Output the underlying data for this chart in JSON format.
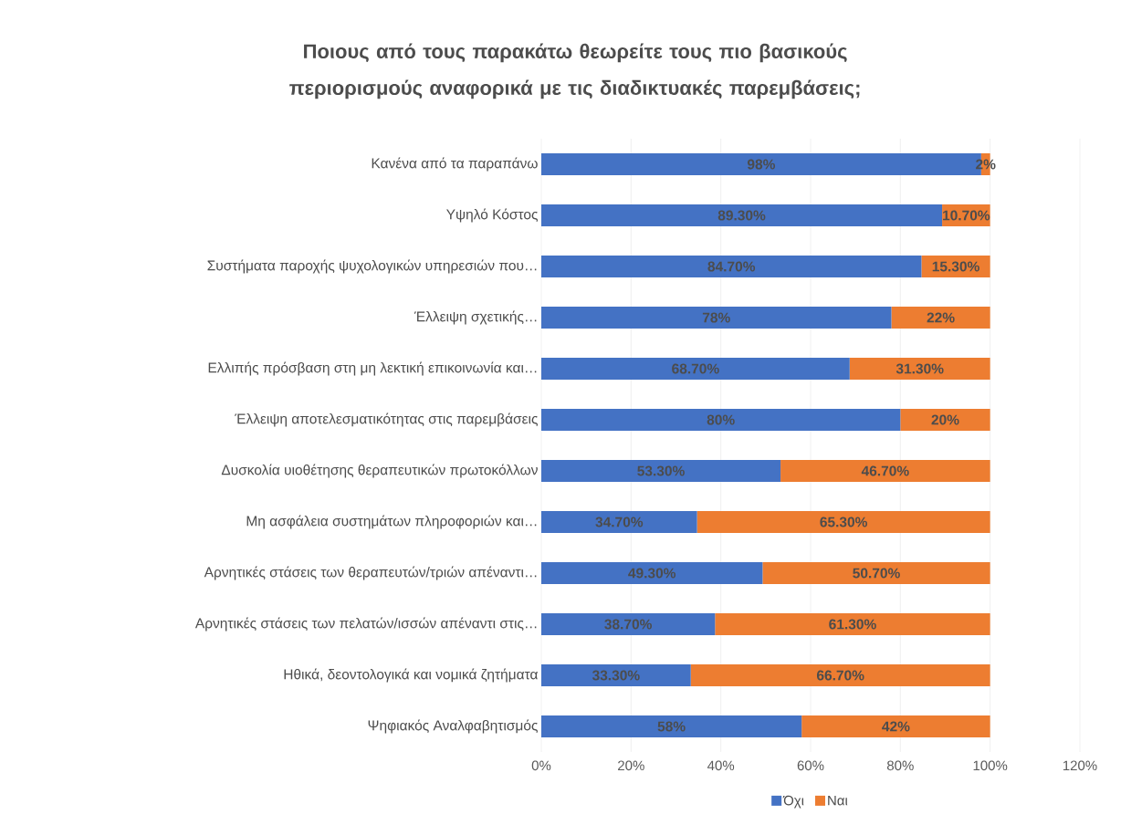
{
  "chart_data": {
    "type": "bar",
    "orientation": "horizontal",
    "stacked": true,
    "title": "Ποιους από τους παρακάτω θεωρείτε τους πιο βασικούς περιορισμούς αναφορικά με τις διαδικτυακές παρεμβάσεις;",
    "categories": [
      "Κανένα από τα παραπάνω",
      "Υψηλό Κόστος",
      "Συστήματα παροχής ψυχολογικών υπηρεσιών που…",
      "Έλλειψη σχετικής…",
      "Ελλιπής πρόσβαση στη μη λεκτική επικοινωνία και…",
      "Έλλειψη αποτελεσματικότητας στις παρεμβάσεις",
      "Δυσκολία υιοθέτησης θεραπευτικών πρωτοκόλλων",
      "Μη ασφάλεια συστημάτων πληροφοριών και…",
      "Αρνητικές στάσεις των θεραπευτών/τριών απέναντι…",
      "Αρνητικές στάσεις των πελατών/ισσών απέναντι στις…",
      "Ηθικά, δεοντολογικά και νομικά ζητήματα",
      "Ψηφιακός Αναλφαβητισμός"
    ],
    "series": [
      {
        "name": "Όχι",
        "color": "#4472c4",
        "values": [
          98,
          89.3,
          84.7,
          78,
          68.7,
          80,
          53.3,
          34.7,
          49.3,
          38.7,
          33.3,
          58
        ],
        "value_labels": [
          "98%",
          "89.30%",
          "84.70%",
          "78%",
          "68.70%",
          "80%",
          "53.30%",
          "34.70%",
          "49.30%",
          "38.70%",
          "33.30%",
          "58%"
        ]
      },
      {
        "name": "Ναι",
        "color": "#ed7d31",
        "values": [
          2,
          10.7,
          15.3,
          22,
          31.3,
          20,
          46.7,
          65.3,
          50.7,
          61.3,
          66.7,
          42
        ],
        "value_labels": [
          "2%",
          "10.70%",
          "15.30%",
          "22%",
          "31.30%",
          "20%",
          "46.70%",
          "65.30%",
          "50.70%",
          "61.30%",
          "66.70%",
          "42%"
        ]
      }
    ],
    "xlim": [
      0,
      120
    ],
    "xticks": [
      {
        "value": 0,
        "label": "0%"
      },
      {
        "value": 20,
        "label": "20%"
      },
      {
        "value": 40,
        "label": "40%"
      },
      {
        "value": 60,
        "label": "60%"
      },
      {
        "value": 80,
        "label": "80%"
      },
      {
        "value": 100,
        "label": "100%"
      },
      {
        "value": 120,
        "label": "120%"
      }
    ],
    "grid": "x",
    "legend": "bottom"
  }
}
